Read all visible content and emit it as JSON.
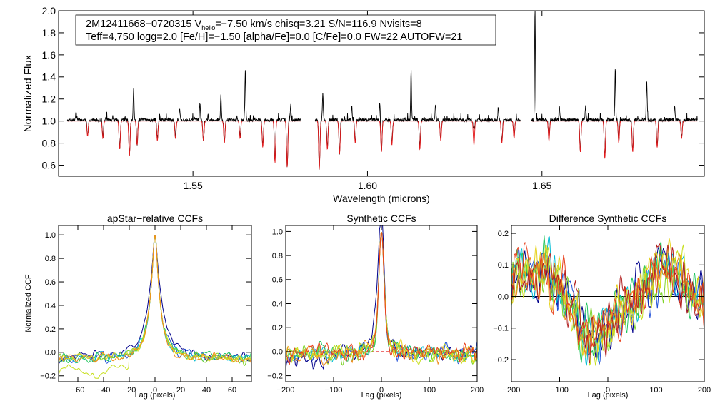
{
  "colors": {
    "observed": "#000000",
    "model": "#e31a1c",
    "series_palette": [
      "#00008b",
      "#1f4fd8",
      "#00bcd4",
      "#22c55e",
      "#7fd42b",
      "#c8e021",
      "#e6d21a",
      "#f08c1a",
      "#e8401c",
      "#b22222",
      "#008b8b",
      "#32cd32"
    ]
  },
  "chart_data": [
    {
      "id": "spectrum",
      "type": "line",
      "title": "",
      "xlabel": "Wavelength (microns)",
      "ylabel": "Normalized Flux",
      "xlim": [
        1.5115,
        1.6965
      ],
      "ylim": [
        0.5,
        2.0
      ],
      "xticks": [
        1.55,
        1.6,
        1.65
      ],
      "xtick_labels": [
        "1.55",
        "1.60",
        "1.65"
      ],
      "yticks": [
        0.6,
        0.8,
        1.0,
        1.2,
        1.4,
        1.6,
        1.8,
        2.0
      ],
      "ytick_labels": [
        "0.6",
        "0.8",
        "1.0",
        "1.2",
        "1.4",
        "1.6",
        "1.8",
        "2.0"
      ],
      "info_line1_prefix": "2M12411668−0720315  V",
      "info_line1_sub": "helio",
      "info_line1_suffix": "=−7.50 km/s  chisq=3.21  S/N=116.9  Nvisits=8",
      "info_line2": "Teff=4,750 logg=2.0 [Fe/H]=−1.50 [alpha/Fe]=0.0 [C/Fe]=0.0 FW=22 AUTOFW=21",
      "chips": [
        [
          1.514,
          1.581
        ],
        [
          1.585,
          1.644
        ],
        [
          1.647,
          1.6945
        ]
      ],
      "continuum": 1.0,
      "absorption_lines": [
        [
          1.5198,
          0.86
        ],
        [
          1.5242,
          0.84
        ],
        [
          1.529,
          0.74
        ],
        [
          1.5318,
          0.68
        ],
        [
          1.534,
          0.78
        ],
        [
          1.5398,
          0.82
        ],
        [
          1.545,
          0.84
        ],
        [
          1.553,
          0.82
        ],
        [
          1.559,
          0.8
        ],
        [
          1.5635,
          0.84
        ],
        [
          1.57,
          0.76
        ],
        [
          1.5735,
          0.62
        ],
        [
          1.577,
          0.58
        ],
        [
          1.5862,
          0.56
        ],
        [
          1.5885,
          0.74
        ],
        [
          1.592,
          0.7
        ],
        [
          1.5965,
          0.8
        ],
        [
          1.604,
          0.72
        ],
        [
          1.607,
          0.78
        ],
        [
          1.615,
          0.74
        ],
        [
          1.621,
          0.82
        ],
        [
          1.6305,
          0.78
        ],
        [
          1.6385,
          0.8
        ],
        [
          1.642,
          0.84
        ],
        [
          1.652,
          0.82
        ],
        [
          1.661,
          0.72
        ],
        [
          1.668,
          0.66
        ],
        [
          1.672,
          0.8
        ],
        [
          1.676,
          0.72
        ],
        [
          1.683,
          0.76
        ],
        [
          1.69,
          0.84
        ]
      ],
      "emission_spikes": [
        [
          1.5165,
          1.08
        ],
        [
          1.533,
          1.3
        ],
        [
          1.5462,
          1.1
        ],
        [
          1.552,
          1.15
        ],
        [
          1.558,
          1.24
        ],
        [
          1.565,
          1.45
        ],
        [
          1.578,
          1.12
        ],
        [
          1.5872,
          1.26
        ],
        [
          1.5955,
          1.14
        ],
        [
          1.6035,
          1.16
        ],
        [
          1.6125,
          1.45
        ],
        [
          1.6195,
          1.13
        ],
        [
          1.6305,
          1.17
        ],
        [
          1.6375,
          1.12
        ],
        [
          1.648,
          2.0
        ],
        [
          1.655,
          1.12
        ],
        [
          1.6625,
          1.13
        ],
        [
          1.671,
          1.46
        ],
        [
          1.68,
          1.37
        ],
        [
          1.688,
          1.14
        ],
        [
          1.695,
          1.05
        ]
      ]
    },
    {
      "id": "apstar_ccf",
      "type": "line",
      "title": "apStar−relative CCFs",
      "xlabel": "Lag (pixels)",
      "ylabel": "Normalized CCF",
      "xlim": [
        -75,
        75
      ],
      "ylim": [
        -0.25,
        1.08
      ],
      "xticks": [
        -60,
        -40,
        -20,
        0,
        20,
        40,
        60
      ],
      "xtick_labels": [
        "−60",
        "−40",
        "−20",
        "0",
        "20",
        "40",
        "60"
      ],
      "yticks": [
        -0.2,
        0.0,
        0.2,
        0.4,
        0.6,
        0.8,
        1.0
      ],
      "ytick_labels": [
        "−0.2",
        "0.0",
        "0.2",
        "0.4",
        "0.6",
        "0.8",
        "1.0"
      ],
      "peak": 1.0,
      "width": 4.5,
      "n_series": 8
    },
    {
      "id": "synthetic_ccf",
      "type": "line",
      "title": "Synthetic CCFs",
      "xlabel": "Lag (pixels)",
      "ylabel": "",
      "xlim": [
        -200,
        200
      ],
      "ylim": [
        -0.25,
        1.05
      ],
      "xticks": [
        -200,
        -100,
        0,
        100,
        200
      ],
      "xtick_labels": [
        "−200",
        "−100",
        "0",
        "100",
        "200"
      ],
      "yticks": [
        -0.2,
        0.0,
        0.2,
        0.4,
        0.6,
        0.8,
        1.0
      ],
      "ytick_labels": [
        "−0.2",
        "0.0",
        "0.2",
        "0.4",
        "0.6",
        "0.8",
        "1.0"
      ],
      "peak": 1.0,
      "width": 5,
      "n_series": 9,
      "reference_line": 0.0
    },
    {
      "id": "difference_ccf",
      "type": "line",
      "title": "Difference Synthetic CCFs",
      "xlabel": "Lag (pixels)",
      "ylabel": "",
      "xlim": [
        -200,
        200
      ],
      "ylim": [
        -0.27,
        0.225
      ],
      "xticks": [
        -200,
        -100,
        0,
        100,
        200
      ],
      "xtick_labels": [
        "−200",
        "−100",
        "0",
        "100",
        "200"
      ],
      "yticks": [
        -0.2,
        -0.1,
        0.0,
        0.1,
        0.2
      ],
      "ytick_labels": [
        "−0.2",
        "−0.1",
        "0.0",
        "0.1",
        "0.2"
      ],
      "n_series": 10,
      "reference_line": 0.0
    }
  ]
}
